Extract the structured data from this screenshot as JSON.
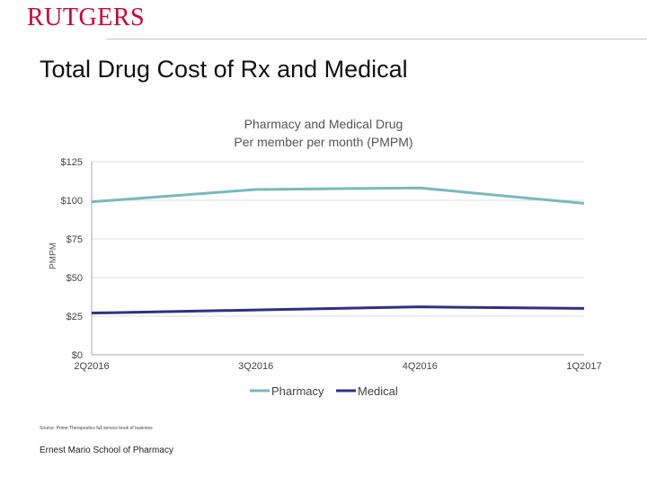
{
  "header": {
    "logo_text": "RUTGERS",
    "slide_title": "Total Drug Cost of Rx and Medical"
  },
  "chart_data": {
    "type": "line",
    "title": "Pharmacy and Medical Drug",
    "subtitle": "Per member per month (PMPM)",
    "ylabel": "PMPM",
    "xlabel": "",
    "categories": [
      "2Q2016",
      "3Q2016",
      "4Q2016",
      "1Q2017"
    ],
    "series": [
      {
        "name": "Pharmacy",
        "values": [
          99,
          107,
          108,
          98
        ],
        "color": "#7ab8bd"
      },
      {
        "name": "Medical",
        "values": [
          27,
          29,
          31,
          30
        ],
        "color": "#2e3182"
      }
    ],
    "ylim": [
      0,
      125
    ],
    "yticks": [
      0,
      25,
      50,
      75,
      100,
      125
    ],
    "ytick_labels": [
      "$0",
      "$25",
      "$50",
      "$75",
      "$100",
      "$125"
    ],
    "grid": true,
    "legend_position": "bottom"
  },
  "footer": {
    "source_note": "Source: Prime Therapeutics full service book of business",
    "school": "Ernest Mario School of Pharmacy"
  }
}
